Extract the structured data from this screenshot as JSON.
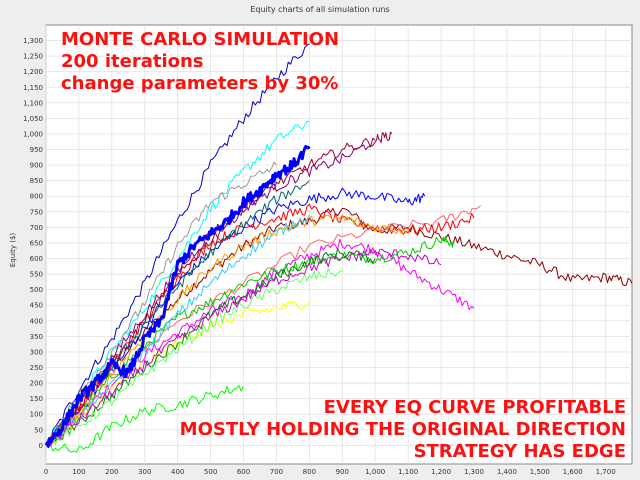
{
  "chart_data": {
    "type": "line",
    "title": "Equity charts of all simulation runs",
    "xlabel": "",
    "ylabel": "Equity ($)",
    "xlim": [
      0,
      1780
    ],
    "ylim": [
      -60,
      1350
    ],
    "x_ticks": [
      "0",
      "100",
      "200",
      "300",
      "400",
      "500",
      "600",
      "700",
      "800",
      "900",
      "1,000",
      "1,100",
      "1,200",
      "1,300",
      "1,400",
      "1,500",
      "1,600",
      "1,700"
    ],
    "y_ticks": [
      "0",
      "50",
      "100",
      "150",
      "200",
      "250",
      "300",
      "350",
      "400",
      "450",
      "500",
      "550",
      "600",
      "650",
      "700",
      "750",
      "800",
      "850",
      "900",
      "950",
      "1,000",
      "1,050",
      "1,100",
      "1,150",
      "1,200",
      "1,250",
      "1,300"
    ],
    "grid": true,
    "legend": "none",
    "series_count": 200,
    "series": [
      {
        "color": "#0000ff",
        "width": 3,
        "x": [
          0,
          50,
          100,
          150,
          200,
          250,
          300,
          350,
          400,
          450,
          500,
          550,
          600,
          650,
          700,
          750,
          800
        ],
        "values": [
          0,
          60,
          150,
          200,
          260,
          230,
          340,
          400,
          580,
          640,
          680,
          720,
          780,
          820,
          870,
          900,
          960
        ]
      },
      {
        "color": "#8b0000",
        "width": 1,
        "x": [
          0,
          100,
          200,
          300,
          400,
          500,
          600,
          700,
          800,
          900,
          1000,
          1100,
          1200,
          1300,
          1400,
          1500,
          1600,
          1700,
          1780
        ],
        "values": [
          0,
          120,
          250,
          360,
          470,
          560,
          640,
          700,
          720,
          760,
          690,
          700,
          670,
          640,
          610,
          580,
          530,
          540,
          520
        ]
      },
      {
        "color": "#0000cc",
        "width": 1,
        "x": [
          0,
          100,
          200,
          300,
          400,
          500,
          600,
          700,
          800
        ],
        "values": [
          0,
          180,
          340,
          520,
          720,
          900,
          1050,
          1180,
          1290
        ]
      },
      {
        "color": "#ff00ff",
        "width": 1,
        "x": [
          0,
          100,
          200,
          300,
          400,
          500,
          600,
          700,
          800,
          900,
          1000,
          1100,
          1200,
          1300
        ],
        "values": [
          0,
          90,
          200,
          290,
          360,
          430,
          480,
          560,
          610,
          650,
          630,
          560,
          500,
          440
        ]
      },
      {
        "color": "#ff6666",
        "width": 1,
        "x": [
          0,
          200,
          400,
          600,
          800,
          1000,
          1200,
          1320
        ],
        "values": [
          0,
          220,
          400,
          520,
          640,
          690,
          720,
          770
        ]
      },
      {
        "color": "#00cc00",
        "width": 1,
        "x": [
          0,
          100,
          200,
          300,
          400,
          500,
          600,
          700,
          800,
          900,
          1000,
          1100,
          1200,
          1240
        ],
        "values": [
          0,
          100,
          220,
          320,
          410,
          460,
          520,
          560,
          590,
          610,
          600,
          620,
          660,
          650
        ]
      },
      {
        "color": "#00ffff",
        "width": 1,
        "x": [
          0,
          100,
          200,
          300,
          400,
          500,
          600,
          700,
          800
        ],
        "values": [
          0,
          150,
          300,
          440,
          600,
          760,
          880,
          980,
          1040
        ]
      },
      {
        "color": "#0000ff",
        "width": 1,
        "x": [
          0,
          100,
          200,
          300,
          400,
          500,
          600,
          700,
          800,
          900,
          1000,
          1100,
          1150
        ],
        "values": [
          0,
          110,
          240,
          380,
          520,
          620,
          700,
          760,
          790,
          810,
          800,
          780,
          800
        ]
      },
      {
        "color": "#00ff00",
        "width": 1,
        "x": [
          0,
          100,
          200,
          300,
          400,
          500,
          600
        ],
        "values": [
          0,
          -20,
          60,
          110,
          130,
          160,
          190
        ]
      },
      {
        "color": "#ff0000",
        "width": 1,
        "x": [
          0,
          100,
          200,
          300,
          400,
          500,
          600,
          700,
          800,
          900,
          1000,
          1100,
          1200,
          1300
        ],
        "values": [
          0,
          130,
          260,
          400,
          540,
          650,
          700,
          730,
          760,
          720,
          700,
          690,
          700,
          730
        ]
      },
      {
        "color": "#ffff00",
        "width": 1,
        "x": [
          0,
          100,
          200,
          300,
          400,
          500,
          600,
          700,
          800
        ],
        "values": [
          0,
          80,
          180,
          260,
          330,
          380,
          420,
          440,
          460
        ]
      },
      {
        "color": "#800080",
        "width": 1,
        "x": [
          0,
          100,
          200,
          300,
          400,
          500,
          600,
          700,
          800,
          900,
          1000
        ],
        "values": [
          0,
          140,
          280,
          420,
          560,
          680,
          760,
          830,
          880,
          920,
          980
        ]
      },
      {
        "color": "#008000",
        "width": 1,
        "x": [
          0,
          100,
          200,
          300,
          400,
          500,
          600,
          700,
          800,
          900,
          1000
        ],
        "values": [
          0,
          70,
          160,
          250,
          330,
          420,
          480,
          540,
          590,
          620,
          600
        ]
      },
      {
        "color": "#999999",
        "width": 1,
        "x": [
          0,
          100,
          200,
          300,
          400,
          500,
          600,
          700
        ],
        "values": [
          0,
          160,
          300,
          460,
          640,
          780,
          840,
          900
        ]
      },
      {
        "color": "#ff9900",
        "width": 1,
        "x": [
          0,
          100,
          200,
          300,
          400,
          500,
          600,
          700,
          800,
          900,
          1000,
          1100
        ],
        "values": [
          0,
          100,
          230,
          350,
          470,
          570,
          640,
          690,
          720,
          730,
          700,
          690
        ]
      },
      {
        "color": "#990033",
        "width": 1,
        "x": [
          0,
          100,
          200,
          300,
          400,
          500,
          600,
          700,
          800,
          900,
          1000,
          1050
        ],
        "values": [
          0,
          120,
          260,
          400,
          540,
          660,
          760,
          840,
          900,
          950,
          980,
          1000
        ]
      },
      {
        "color": "#33ccff",
        "width": 1,
        "x": [
          0,
          100,
          200,
          300,
          400,
          500,
          600,
          700,
          800
        ],
        "values": [
          0,
          90,
          190,
          300,
          420,
          520,
          610,
          680,
          740
        ]
      },
      {
        "color": "#66ff66",
        "width": 1,
        "x": [
          0,
          100,
          200,
          300,
          400,
          500,
          600,
          700,
          800,
          900
        ],
        "values": [
          0,
          60,
          140,
          230,
          310,
          390,
          450,
          500,
          540,
          560
        ]
      },
      {
        "color": "#cc00cc",
        "width": 1,
        "x": [
          0,
          100,
          200,
          300,
          400,
          500,
          600,
          700,
          800,
          900,
          1000,
          1100,
          1200
        ],
        "values": [
          0,
          80,
          170,
          260,
          340,
          410,
          470,
          530,
          570,
          600,
          620,
          610,
          580
        ]
      },
      {
        "color": "#006666",
        "width": 1,
        "x": [
          0,
          100,
          200,
          300,
          400,
          500,
          600,
          700,
          800
        ],
        "values": [
          0,
          130,
          250,
          390,
          510,
          620,
          710,
          790,
          850
        ]
      }
    ]
  },
  "overlay": {
    "top_lines": [
      "MONTE CARLO SIMULATION",
      "200 iterations",
      "change parameters by 30%"
    ],
    "bottom_lines": [
      "EVERY EQ CURVE PROFITABLE",
      "MOSTLY HOLDING THE ORIGINAL DIRECTION",
      "STRATEGY HAS EDGE"
    ]
  }
}
